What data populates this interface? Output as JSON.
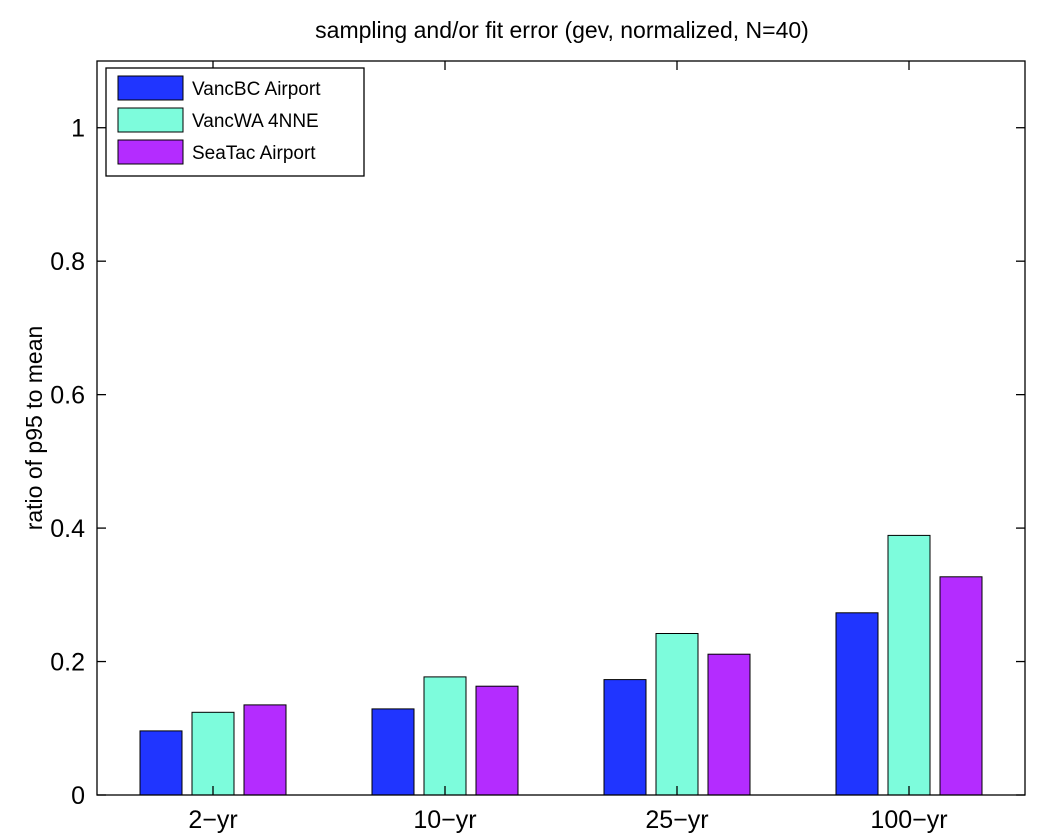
{
  "chart_data": {
    "type": "bar",
    "title": "sampling and/or fit error (gev, normalized, N=40)",
    "xlabel": "",
    "ylabel": "ratio of p95 to mean",
    "categories": [
      "2−yr",
      "10−yr",
      "25−yr",
      "100−yr"
    ],
    "ylim": [
      0,
      1.1
    ],
    "yticks": [
      0,
      0.2,
      0.4,
      0.6,
      0.8,
      1
    ],
    "ytick_labels": [
      "0",
      "0.2",
      "0.4",
      "0.6",
      "0.8",
      "1"
    ],
    "grid": false,
    "legend_position": "top-left",
    "series": [
      {
        "name": "VancBC Airport",
        "color": "#2035ff",
        "values": [
          0.096,
          0.129,
          0.173,
          0.273
        ]
      },
      {
        "name": "VancWA 4NNE",
        "color": "#7dfcdc",
        "values": [
          0.124,
          0.177,
          0.242,
          0.389
        ]
      },
      {
        "name": "SeaTac Airport",
        "color": "#b42cff",
        "values": [
          0.135,
          0.163,
          0.211,
          0.327
        ]
      }
    ]
  }
}
